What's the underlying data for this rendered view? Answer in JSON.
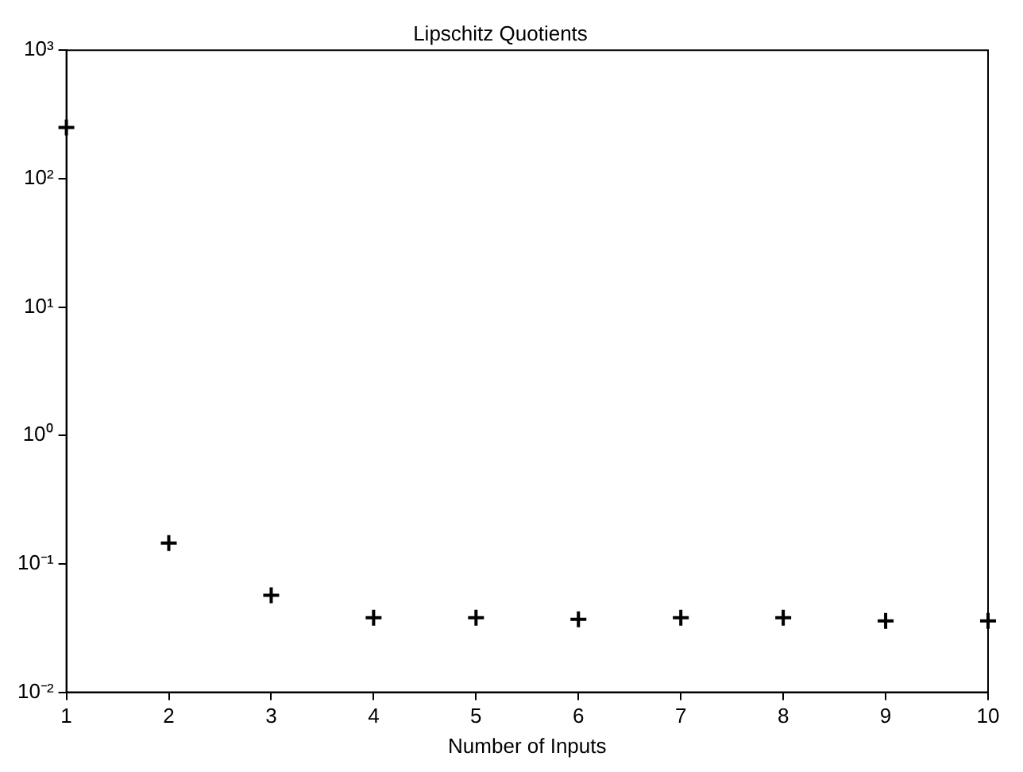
{
  "chart_data": {
    "type": "scatter",
    "title": "Lipschitz Quotients",
    "xlabel": "Number of Inputs",
    "x": [
      1,
      2,
      3,
      4,
      5,
      6,
      7,
      8,
      9,
      10
    ],
    "series": [
      {
        "color": "#000000",
        "values": [
          250,
          0.145,
          0.057,
          0.038,
          0.038,
          0.037,
          0.038,
          0.038,
          0.036,
          0.036
        ]
      }
    ],
    "marker": "cross",
    "log": "y",
    "grid": false,
    "legend": false,
    "xlim": [
      1,
      10
    ],
    "xticks": [
      1,
      2,
      3,
      4,
      5,
      6,
      7,
      8,
      9,
      10
    ],
    "ylim": [
      0.01,
      1000
    ],
    "yticks": [
      {
        "value": 0.01,
        "label": "10⁻²"
      },
      {
        "value": 0.1,
        "label": "10⁻¹"
      },
      {
        "value": 1,
        "label": "10⁰"
      },
      {
        "value": 10,
        "label": "10¹"
      },
      {
        "value": 100,
        "label": "10²"
      },
      {
        "value": 1000,
        "label": "10³"
      }
    ]
  }
}
